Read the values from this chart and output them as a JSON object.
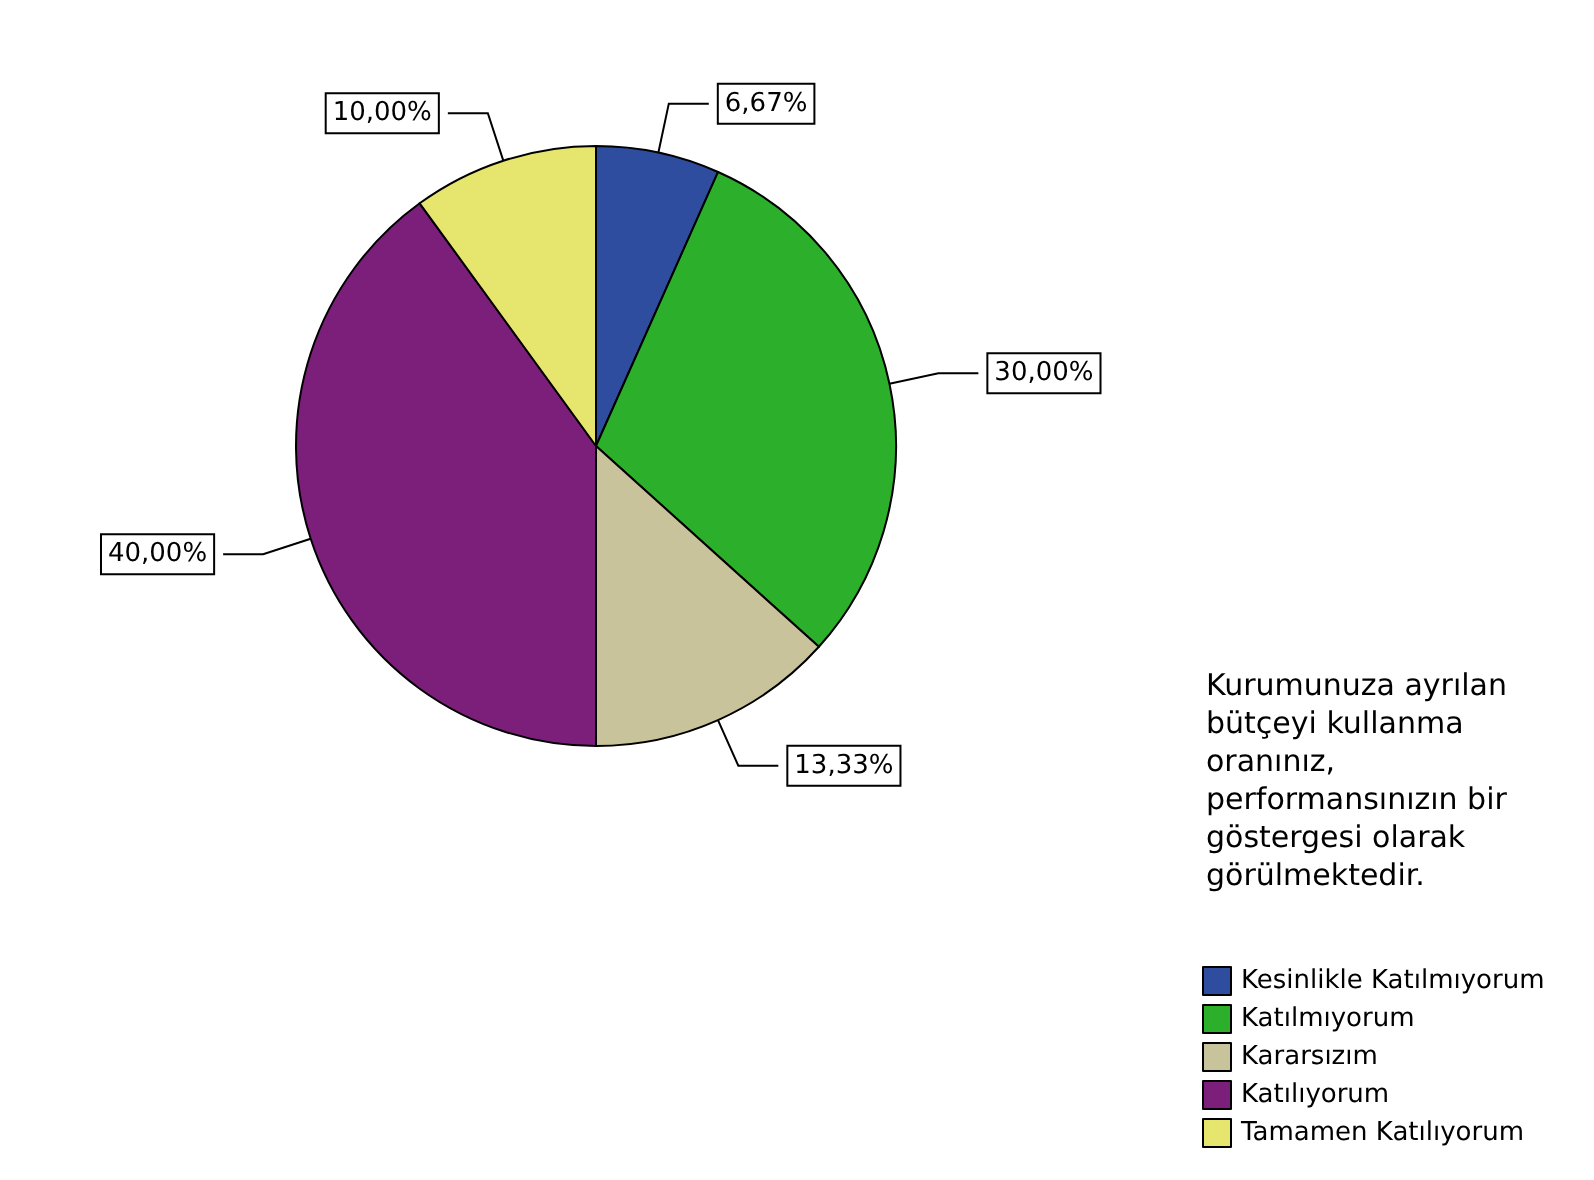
{
  "chart_data": {
    "type": "pie",
    "legend_title": "Kurumunuza ayrılan bütçeyi kullanma oranınız, performansınızın bir göstergesi olarak görülmektedir.",
    "categories": [
      "Kesinlikle Katılmıyorum",
      "Katılmıyorum",
      "Kararsızım",
      "Katılıyorum",
      "Tamamen Katılıyorum"
    ],
    "values": [
      6.67,
      30,
      13.33,
      40,
      10
    ],
    "colors": [
      "#2f4d9e",
      "#2cb02c",
      "#c9c39b",
      "#7b1f7b",
      "#e6e66e"
    ],
    "value_labels": [
      "6,67%",
      "30,00%",
      "13,33%",
      "40,00%",
      "10,00%"
    ],
    "legend": "bottom right"
  }
}
